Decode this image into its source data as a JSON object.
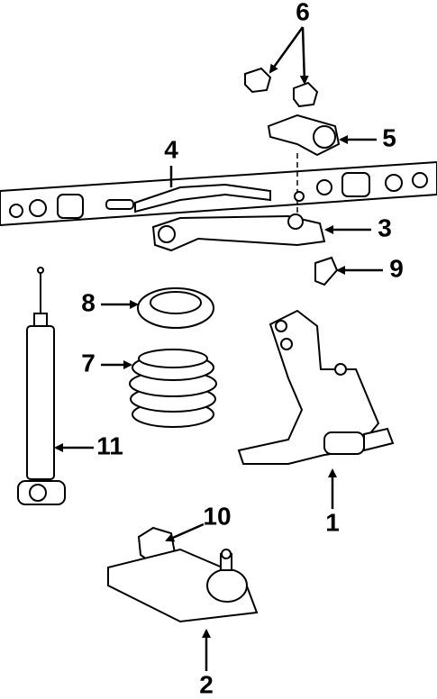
{
  "callouts": [
    {
      "label": "1"
    },
    {
      "label": "2"
    },
    {
      "label": "3"
    },
    {
      "label": "4"
    },
    {
      "label": "5"
    },
    {
      "label": "6"
    },
    {
      "label": "7"
    },
    {
      "label": "8"
    },
    {
      "label": "9"
    },
    {
      "label": "10"
    },
    {
      "label": "11"
    }
  ]
}
